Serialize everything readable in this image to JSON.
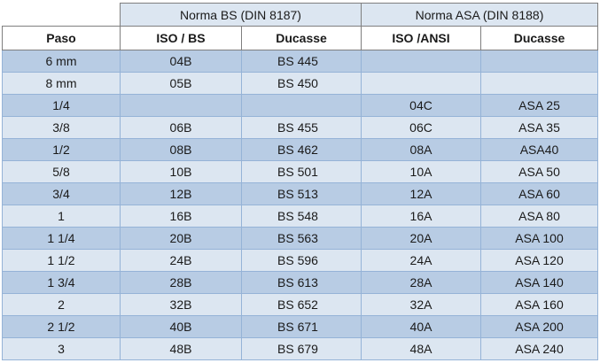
{
  "table": {
    "group_headers": [
      "Norma BS (DIN 8187)",
      "Norma ASA (DIN 8188)"
    ],
    "columns": [
      "Paso",
      "ISO / BS",
      "Ducasse",
      "ISO /ANSI",
      "Ducasse"
    ],
    "rows": [
      [
        "6 mm",
        "04B",
        "BS 445",
        null,
        null
      ],
      [
        "8 mm",
        "05B",
        "BS 450",
        null,
        null
      ],
      [
        "1/4",
        null,
        null,
        "04C",
        "ASA 25"
      ],
      [
        "3/8",
        "06B",
        "BS 455",
        "06C",
        "ASA 35"
      ],
      [
        "1/2",
        "08B",
        "BS 462",
        "08A",
        "ASA40"
      ],
      [
        "5/8",
        "10B",
        "BS 501",
        "10A",
        "ASA 50"
      ],
      [
        "3/4",
        "12B",
        "BS 513",
        "12A",
        "ASA 60"
      ],
      [
        "1",
        "16B",
        "BS 548",
        "16A",
        "ASA 80"
      ],
      [
        "1 1/4",
        "20B",
        "BS 563",
        "20A",
        "ASA 100"
      ],
      [
        "1 1/2",
        "24B",
        "BS 596",
        "24A",
        "ASA 120"
      ],
      [
        "1 3/4",
        "28B",
        "BS 613",
        "28A",
        "ASA 140"
      ],
      [
        "2",
        "32B",
        "BS 652",
        "32A",
        "ASA 160"
      ],
      [
        "2 1/2",
        "40B",
        "BS 671",
        "40A",
        "ASA 200"
      ],
      [
        "3",
        "48B",
        "BS 679",
        "48A",
        "ASA 240"
      ]
    ]
  }
}
